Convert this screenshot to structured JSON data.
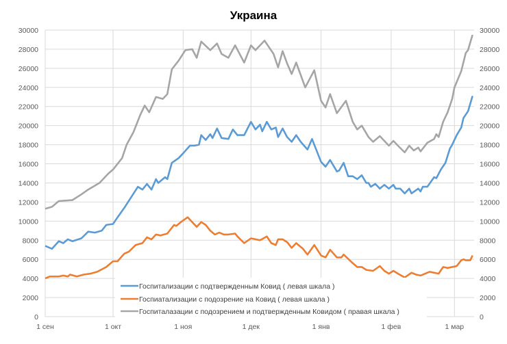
{
  "chart_data": {
    "type": "line",
    "title": "Украина",
    "xlabel": "",
    "ylabel": "",
    "ylim_left": [
      0,
      30000
    ],
    "ylim_right": [
      0,
      30000
    ],
    "yticks": [
      0,
      2000,
      4000,
      6000,
      8000,
      10000,
      12000,
      14000,
      16000,
      18000,
      20000,
      22000,
      24000,
      26000,
      28000,
      30000
    ],
    "xticks": [
      {
        "date": "09-01",
        "label": "1 сен"
      },
      {
        "date": "10-01",
        "label": "1 окт"
      },
      {
        "date": "11-01",
        "label": "1 ноя"
      },
      {
        "date": "12-01",
        "label": "1 дек"
      },
      {
        "date": "01-01",
        "label": "1 янв"
      },
      {
        "date": "02-01",
        "label": "1 фев"
      },
      {
        "date": "03-01",
        "label": "1 мар"
      }
    ],
    "grid": true,
    "legend_position": "bottom-center-inside",
    "series": [
      {
        "name": "Госпитализации с подтвержденным Ковид ( левая шкала )",
        "axis": "left",
        "color": "#5B9BD5",
        "points": [
          [
            "09-01",
            7400
          ],
          [
            "09-04",
            7100
          ],
          [
            "09-07",
            7900
          ],
          [
            "09-09",
            7700
          ],
          [
            "09-11",
            8100
          ],
          [
            "09-13",
            7900
          ],
          [
            "09-17",
            8200
          ],
          [
            "09-20",
            8900
          ],
          [
            "09-23",
            8800
          ],
          [
            "09-26",
            9000
          ],
          [
            "09-28",
            9600
          ],
          [
            "10-01",
            9700
          ],
          [
            "10-03",
            10400
          ],
          [
            "10-06",
            11400
          ],
          [
            "10-09",
            12500
          ],
          [
            "10-12",
            13600
          ],
          [
            "10-14",
            13300
          ],
          [
            "10-16",
            13900
          ],
          [
            "10-18",
            13300
          ],
          [
            "10-20",
            14400
          ],
          [
            "10-21",
            14000
          ],
          [
            "10-24",
            14600
          ],
          [
            "10-25",
            14400
          ],
          [
            "10-27",
            16100
          ],
          [
            "10-30",
            16600
          ],
          [
            "11-01",
            17100
          ],
          [
            "11-04",
            17900
          ],
          [
            "11-06",
            17900
          ],
          [
            "11-08",
            18000
          ],
          [
            "11-09",
            19000
          ],
          [
            "11-11",
            18500
          ],
          [
            "11-13",
            19100
          ],
          [
            "11-14",
            18700
          ],
          [
            "11-16",
            19700
          ],
          [
            "11-18",
            18700
          ],
          [
            "11-21",
            18600
          ],
          [
            "11-23",
            19600
          ],
          [
            "11-25",
            19000
          ],
          [
            "11-28",
            19000
          ],
          [
            "12-01",
            20400
          ],
          [
            "12-03",
            19600
          ],
          [
            "12-05",
            20100
          ],
          [
            "12-06",
            19400
          ],
          [
            "12-08",
            20400
          ],
          [
            "12-10",
            19600
          ],
          [
            "12-12",
            19800
          ],
          [
            "12-13",
            18800
          ],
          [
            "12-15",
            19700
          ],
          [
            "12-17",
            18800
          ],
          [
            "12-19",
            18300
          ],
          [
            "12-21",
            19000
          ],
          [
            "12-23",
            18300
          ],
          [
            "12-26",
            17500
          ],
          [
            "12-28",
            18600
          ],
          [
            "01-01",
            16200
          ],
          [
            "01-03",
            15700
          ],
          [
            "01-05",
            16400
          ],
          [
            "01-08",
            15200
          ],
          [
            "01-09",
            15300
          ],
          [
            "01-11",
            16100
          ],
          [
            "01-13",
            14700
          ],
          [
            "01-15",
            14700
          ],
          [
            "01-17",
            14400
          ],
          [
            "01-19",
            14800
          ],
          [
            "01-21",
            14000
          ],
          [
            "01-22",
            14000
          ],
          [
            "01-23",
            13600
          ],
          [
            "01-25",
            13900
          ],
          [
            "01-27",
            13400
          ],
          [
            "01-29",
            13800
          ],
          [
            "01-31",
            13400
          ],
          [
            "02-02",
            13800
          ],
          [
            "02-03",
            13400
          ],
          [
            "02-05",
            13400
          ],
          [
            "02-07",
            12900
          ],
          [
            "02-09",
            13400
          ],
          [
            "02-10",
            12900
          ],
          [
            "02-13",
            13400
          ],
          [
            "02-14",
            13100
          ],
          [
            "02-15",
            13600
          ],
          [
            "02-17",
            13600
          ],
          [
            "02-20",
            14600
          ],
          [
            "02-21",
            14500
          ],
          [
            "02-23",
            15400
          ],
          [
            "02-25",
            16100
          ],
          [
            "02-27",
            17600
          ],
          [
            "02-28",
            18000
          ],
          [
            "03-02",
            19000
          ],
          [
            "03-04",
            19800
          ],
          [
            "03-05",
            20800
          ],
          [
            "03-07",
            21500
          ],
          [
            "03-09",
            23100
          ]
        ]
      },
      {
        "name": "Госпиатализации с подозрение на Ковид ( левая шкала )",
        "axis": "left",
        "color": "#ED7D31",
        "points": [
          [
            "09-01",
            4000
          ],
          [
            "09-03",
            4200
          ],
          [
            "09-07",
            4200
          ],
          [
            "09-09",
            4300
          ],
          [
            "09-11",
            4200
          ],
          [
            "09-12",
            4400
          ],
          [
            "09-15",
            4200
          ],
          [
            "09-18",
            4400
          ],
          [
            "09-21",
            4500
          ],
          [
            "09-24",
            4700
          ],
          [
            "09-28",
            5200
          ],
          [
            "10-01",
            5800
          ],
          [
            "10-03",
            5800
          ],
          [
            "10-06",
            6600
          ],
          [
            "10-08",
            6800
          ],
          [
            "10-11",
            7500
          ],
          [
            "10-14",
            7700
          ],
          [
            "10-16",
            8300
          ],
          [
            "10-18",
            8100
          ],
          [
            "10-20",
            8600
          ],
          [
            "10-22",
            8500
          ],
          [
            "10-25",
            8700
          ],
          [
            "10-28",
            9600
          ],
          [
            "10-29",
            9500
          ],
          [
            "10-31",
            9900
          ],
          [
            "11-03",
            10400
          ],
          [
            "11-05",
            9900
          ],
          [
            "11-07",
            9400
          ],
          [
            "11-09",
            9900
          ],
          [
            "11-11",
            9600
          ],
          [
            "11-13",
            9000
          ],
          [
            "11-15",
            8600
          ],
          [
            "11-17",
            8800
          ],
          [
            "11-19",
            8600
          ],
          [
            "11-21",
            8600
          ],
          [
            "11-24",
            8700
          ],
          [
            "11-25",
            8400
          ],
          [
            "11-28",
            7700
          ],
          [
            "12-01",
            8200
          ],
          [
            "12-03",
            8100
          ],
          [
            "12-05",
            8000
          ],
          [
            "12-08",
            8400
          ],
          [
            "12-10",
            7700
          ],
          [
            "12-12",
            7500
          ],
          [
            "12-13",
            8100
          ],
          [
            "12-15",
            8100
          ],
          [
            "12-17",
            7800
          ],
          [
            "12-19",
            7200
          ],
          [
            "12-21",
            7700
          ],
          [
            "12-24",
            7100
          ],
          [
            "12-26",
            6500
          ],
          [
            "12-29",
            7500
          ],
          [
            "01-01",
            6400
          ],
          [
            "01-03",
            6200
          ],
          [
            "01-05",
            7000
          ],
          [
            "01-08",
            6200
          ],
          [
            "01-10",
            6200
          ],
          [
            "01-11",
            6500
          ],
          [
            "01-15",
            5600
          ],
          [
            "01-17",
            5200
          ],
          [
            "01-19",
            5200
          ],
          [
            "01-21",
            4900
          ],
          [
            "01-24",
            4800
          ],
          [
            "01-27",
            5300
          ],
          [
            "01-29",
            4800
          ],
          [
            "01-31",
            4500
          ],
          [
            "02-02",
            4800
          ],
          [
            "02-04",
            4500
          ],
          [
            "02-07",
            4100
          ],
          [
            "02-10",
            4600
          ],
          [
            "02-12",
            4400
          ],
          [
            "02-14",
            4300
          ],
          [
            "02-18",
            4700
          ],
          [
            "02-20",
            4600
          ],
          [
            "02-22",
            4500
          ],
          [
            "02-24",
            5200
          ],
          [
            "02-26",
            5100
          ],
          [
            "03-02",
            5300
          ],
          [
            "03-04",
            5900
          ],
          [
            "03-05",
            6000
          ],
          [
            "03-06",
            5900
          ],
          [
            "03-08",
            5900
          ],
          [
            "03-09",
            6400
          ]
        ]
      },
      {
        "name": "Госпиталазации с подозрением и подтвержденным Ковидом ( правая шкала )",
        "axis": "right",
        "color": "#A5A5A5",
        "points": [
          [
            "09-01",
            11300
          ],
          [
            "09-04",
            11500
          ],
          [
            "09-07",
            12100
          ],
          [
            "09-13",
            12200
          ],
          [
            "09-17",
            12800
          ],
          [
            "09-20",
            13300
          ],
          [
            "09-25",
            14000
          ],
          [
            "09-29",
            15000
          ],
          [
            "10-01",
            15400
          ],
          [
            "10-05",
            16600
          ],
          [
            "10-07",
            18000
          ],
          [
            "10-10",
            19300
          ],
          [
            "10-13",
            21100
          ],
          [
            "10-15",
            22100
          ],
          [
            "10-17",
            21400
          ],
          [
            "10-20",
            23000
          ],
          [
            "10-23",
            22800
          ],
          [
            "10-25",
            23300
          ],
          [
            "10-27",
            25900
          ],
          [
            "10-30",
            26800
          ],
          [
            "11-02",
            27900
          ],
          [
            "11-05",
            28000
          ],
          [
            "11-07",
            27100
          ],
          [
            "11-09",
            28800
          ],
          [
            "11-13",
            27900
          ],
          [
            "11-16",
            28600
          ],
          [
            "11-18",
            27500
          ],
          [
            "11-21",
            27100
          ],
          [
            "11-24",
            28400
          ],
          [
            "11-28",
            26600
          ],
          [
            "12-01",
            28400
          ],
          [
            "12-03",
            27900
          ],
          [
            "12-07",
            28900
          ],
          [
            "12-11",
            27500
          ],
          [
            "12-13",
            26100
          ],
          [
            "12-15",
            27800
          ],
          [
            "12-17",
            26500
          ],
          [
            "12-19",
            25400
          ],
          [
            "12-21",
            26600
          ],
          [
            "12-25",
            24000
          ],
          [
            "12-29",
            25800
          ],
          [
            "01-01",
            22600
          ],
          [
            "01-03",
            21900
          ],
          [
            "01-05",
            23300
          ],
          [
            "01-08",
            21300
          ],
          [
            "01-12",
            22600
          ],
          [
            "01-15",
            20400
          ],
          [
            "01-17",
            19600
          ],
          [
            "01-19",
            20000
          ],
          [
            "01-22",
            18800
          ],
          [
            "01-24",
            18300
          ],
          [
            "01-27",
            18900
          ],
          [
            "01-31",
            17900
          ],
          [
            "02-02",
            18400
          ],
          [
            "02-04",
            17900
          ],
          [
            "02-07",
            17200
          ],
          [
            "02-09",
            17900
          ],
          [
            "02-11",
            17400
          ],
          [
            "02-13",
            17700
          ],
          [
            "02-14",
            17300
          ],
          [
            "02-17",
            18200
          ],
          [
            "02-20",
            18600
          ],
          [
            "02-21",
            19100
          ],
          [
            "02-22",
            18800
          ],
          [
            "02-24",
            20400
          ],
          [
            "02-26",
            21400
          ],
          [
            "02-28",
            22800
          ],
          [
            "03-01",
            24000
          ],
          [
            "03-04",
            25700
          ],
          [
            "03-06",
            27600
          ],
          [
            "03-07",
            27900
          ],
          [
            "03-09",
            29500
          ]
        ]
      }
    ]
  }
}
